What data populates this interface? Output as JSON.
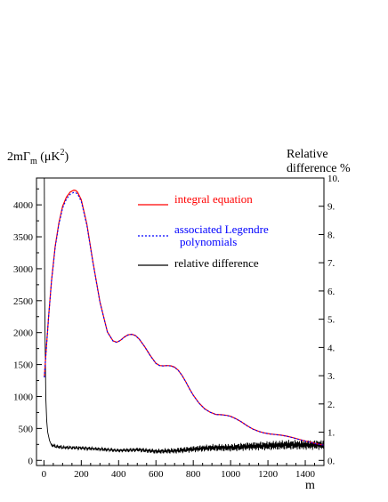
{
  "chart_data": {
    "type": "line",
    "ylabel_left": {
      "main": "2mΓ",
      "sub": "m",
      "unit_pre": " (μK",
      "unit_sup": "2",
      "unit_post": ")"
    },
    "ylabel_right": [
      "Relative",
      "difference %"
    ],
    "xlabel": "m",
    "xlim": [
      -40,
      1500
    ],
    "ylim_left": [
      -80,
      4420
    ],
    "ylim_right": [
      -0.18,
      10.0
    ],
    "x_ticks": [
      0,
      200,
      400,
      600,
      800,
      1000,
      1200,
      1400
    ],
    "x_tick_labels": [
      "0",
      "200",
      "400",
      "600",
      "800",
      "1000",
      "1200",
      "1400"
    ],
    "y_ticks_left": [
      0,
      500,
      1000,
      1500,
      2000,
      2500,
      3000,
      3500,
      4000
    ],
    "y_tick_labels_left": [
      "0",
      "500",
      "1000",
      "1500",
      "2000",
      "2500",
      "3000",
      "3500",
      "4000"
    ],
    "y_ticks_right": [
      0,
      1,
      2,
      3,
      4,
      5,
      6,
      7,
      8,
      9,
      10
    ],
    "y_tick_labels_right": [
      "0.",
      "1.",
      "2.",
      "3.",
      "4.",
      "5.",
      "6.",
      "7.",
      "8.",
      "9.",
      "10."
    ],
    "grid": false,
    "legend_position": "top-right",
    "series": [
      {
        "name": "integral equation",
        "color": "#ff0000",
        "style": "solid",
        "axis": "left",
        "x": [
          2,
          10,
          25,
          40,
          60,
          80,
          100,
          120,
          140,
          160,
          170,
          180,
          200,
          230,
          260,
          300,
          340,
          370,
          390,
          410,
          430,
          450,
          470,
          490,
          510,
          540,
          570,
          600,
          620,
          640,
          660,
          680,
          700,
          720,
          740,
          760,
          780,
          800,
          830,
          860,
          890,
          920,
          950,
          980,
          1000,
          1030,
          1060,
          1090,
          1120,
          1150,
          1180,
          1210,
          1240,
          1270,
          1300,
          1330,
          1360,
          1400,
          1440,
          1470,
          1500
        ],
        "y": [
          1300,
          1650,
          2250,
          2800,
          3350,
          3720,
          3980,
          4120,
          4200,
          4230,
          4225,
          4200,
          4080,
          3700,
          3150,
          2480,
          2010,
          1870,
          1850,
          1880,
          1930,
          1965,
          1975,
          1955,
          1900,
          1780,
          1640,
          1520,
          1485,
          1480,
          1485,
          1480,
          1460,
          1410,
          1330,
          1230,
          1120,
          1020,
          900,
          810,
          755,
          720,
          715,
          705,
          690,
          650,
          600,
          540,
          490,
          455,
          430,
          415,
          405,
          395,
          380,
          360,
          335,
          305,
          275,
          255,
          240
        ]
      },
      {
        "name": "associated Legendre polynomials",
        "color": "#0000ff",
        "style": "dotted",
        "axis": "left",
        "x": [
          2,
          10,
          25,
          40,
          60,
          80,
          100,
          120,
          140,
          160,
          170,
          180,
          200,
          230,
          260,
          300,
          340,
          370,
          390,
          410,
          430,
          450,
          470,
          490,
          510,
          540,
          570,
          600,
          620,
          640,
          660,
          680,
          700,
          720,
          740,
          760,
          780,
          800,
          830,
          860,
          890,
          920,
          950,
          980,
          1000,
          1030,
          1060,
          1090,
          1120,
          1150,
          1180,
          1210,
          1240,
          1270,
          1300,
          1330,
          1360,
          1400,
          1440,
          1470,
          1500
        ],
        "y": [
          1300,
          1640,
          2240,
          2790,
          3330,
          3700,
          3950,
          4090,
          4165,
          4195,
          4190,
          4170,
          4055,
          3680,
          3140,
          2475,
          2008,
          1868,
          1848,
          1878,
          1928,
          1962,
          1972,
          1952,
          1898,
          1778,
          1638,
          1518,
          1483,
          1478,
          1483,
          1478,
          1458,
          1408,
          1328,
          1228,
          1118,
          1018,
          898,
          808,
          753,
          718,
          713,
          703,
          688,
          648,
          598,
          538,
          488,
          453,
          428,
          413,
          403,
          393,
          378,
          358,
          333,
          303,
          273,
          253,
          238
        ]
      },
      {
        "name": "relative difference",
        "color": "#000000",
        "style": "solid",
        "axis": "right",
        "x": [
          2,
          4,
          6,
          8,
          10,
          15,
          20,
          30,
          40,
          60,
          80,
          100,
          150,
          200,
          250,
          300,
          400,
          500,
          600,
          700,
          800,
          900,
          1000,
          1100,
          1200,
          1300,
          1400,
          1500
        ],
        "y": [
          10.0,
          6.0,
          4.5,
          3.2,
          2.2,
          1.4,
          1.0,
          0.7,
          0.55,
          0.5,
          0.48,
          0.46,
          0.45,
          0.44,
          0.42,
          0.4,
          0.35,
          0.38,
          0.32,
          0.34,
          0.4,
          0.45,
          0.45,
          0.5,
          0.52,
          0.55,
          0.55,
          0.55
        ]
      }
    ]
  }
}
